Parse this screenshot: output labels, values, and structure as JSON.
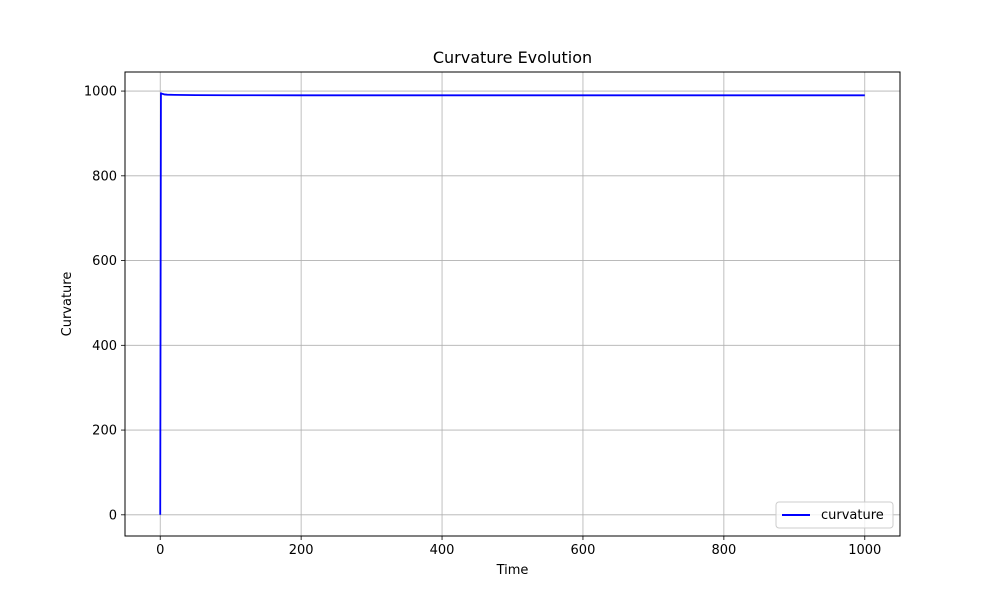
{
  "chart_data": {
    "type": "line",
    "title": "Curvature Evolution",
    "xlabel": "Time",
    "ylabel": "Curvature",
    "xlim": [
      -50,
      1050
    ],
    "ylim": [
      -50,
      1045
    ],
    "xticks": [
      0,
      200,
      400,
      600,
      800,
      1000
    ],
    "yticks": [
      0,
      200,
      400,
      600,
      800,
      1000
    ],
    "grid": true,
    "legend_position": "lower-right",
    "series": [
      {
        "name": "curvature",
        "color": "#0000ff",
        "x": [
          0,
          1,
          2,
          4,
          6,
          10,
          20,
          50,
          100,
          200,
          300,
          400,
          500,
          600,
          700,
          800,
          900,
          1000
        ],
        "y": [
          0,
          995,
          994,
          993,
          992,
          991.5,
          991,
          990.5,
          990.2,
          990,
          990,
          990,
          990,
          990,
          990,
          990,
          990,
          990
        ]
      }
    ]
  }
}
